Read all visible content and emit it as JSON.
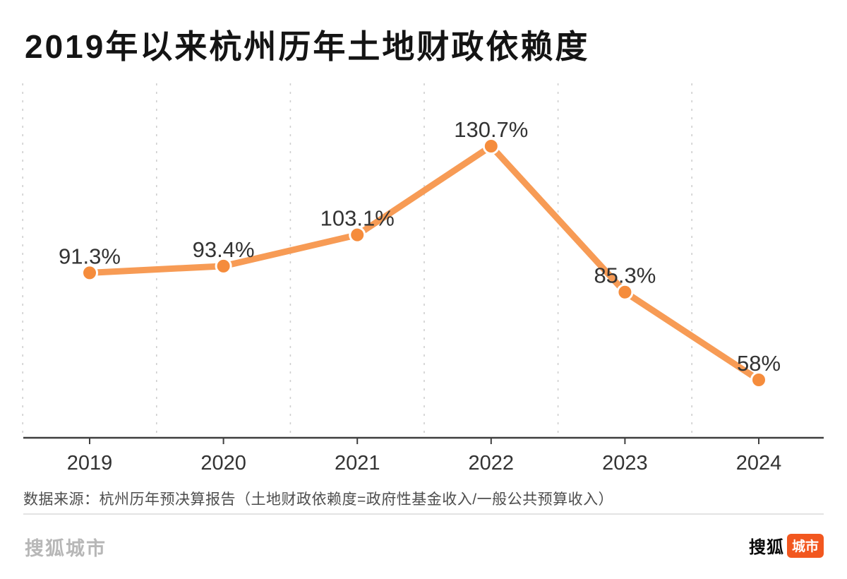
{
  "title": "2019年以来杭州历年土地财政依赖度",
  "source_note": "数据来源：杭州历年预决算报告（土地财政依赖度=政府性基金收入/一般公共预算收入）",
  "footer": {
    "watermark": "搜狐城市",
    "logo_text": "搜狐",
    "logo_badge": "城市"
  },
  "colors": {
    "line": "#F79B55",
    "point": "#F58C3C",
    "point_ring": "#FFFFFF",
    "axis": "#3F3F3F",
    "gridline": "#CFCFCF",
    "label": "#333333",
    "badge": "#F2571F"
  },
  "chart_data": {
    "type": "line",
    "categories": [
      "2019",
      "2020",
      "2021",
      "2022",
      "2023",
      "2024"
    ],
    "values": [
      91.3,
      93.4,
      103.1,
      130.7,
      85.3,
      58
    ],
    "point_labels": [
      "91.3%",
      "93.4%",
      "103.1%",
      "130.7%",
      "85.3%",
      "58%"
    ],
    "title": "2019年以来杭州历年土地财政依赖度",
    "xlabel": "",
    "ylabel": "",
    "ylim": [
      58,
      130.7
    ],
    "grid": "vertical-dashed",
    "legend": "none"
  }
}
